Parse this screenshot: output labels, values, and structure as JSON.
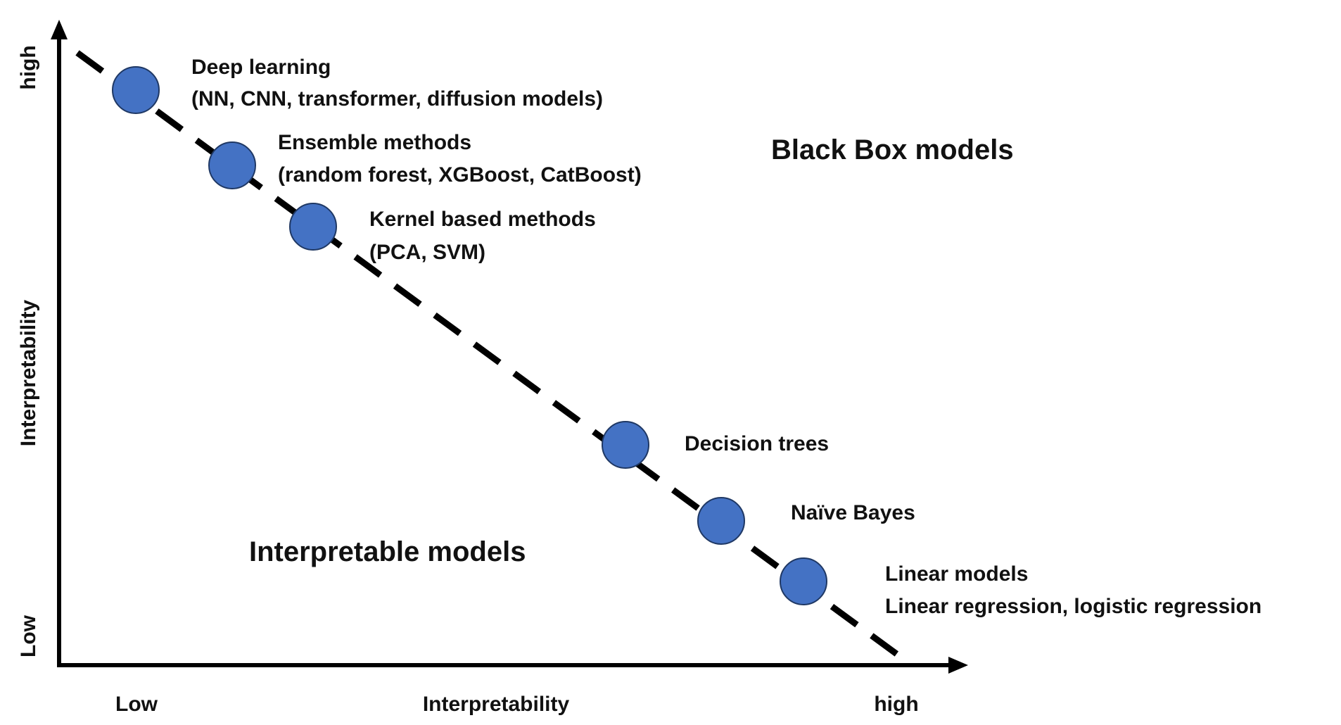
{
  "axes": {
    "x_label": "Interpretability",
    "x_low": "Low",
    "x_high": "high",
    "y_label": "Interpretability",
    "y_low": "Low",
    "y_high": "high"
  },
  "regions": {
    "black_box": "Black Box models",
    "interpretable": "Interpretable models"
  },
  "colors": {
    "point_fill": "#4472C4",
    "point_stroke": "#1F3864",
    "ink": "#111111"
  },
  "points": [
    {
      "line1": "Deep learning",
      "line2": "(NN, CNN, transformer, diffusion models)"
    },
    {
      "line1": "Ensemble methods",
      "line2": "(random forest, XGBoost, CatBoost)"
    },
    {
      "line1": "Kernel based methods",
      "line2": "(PCA, SVM)"
    },
    {
      "line1": "Decision trees",
      "line2": ""
    },
    {
      "line1": "Naïve Bayes",
      "line2": ""
    },
    {
      "line1": "Linear models",
      "line2": "Linear regression, logistic regression"
    }
  ]
}
